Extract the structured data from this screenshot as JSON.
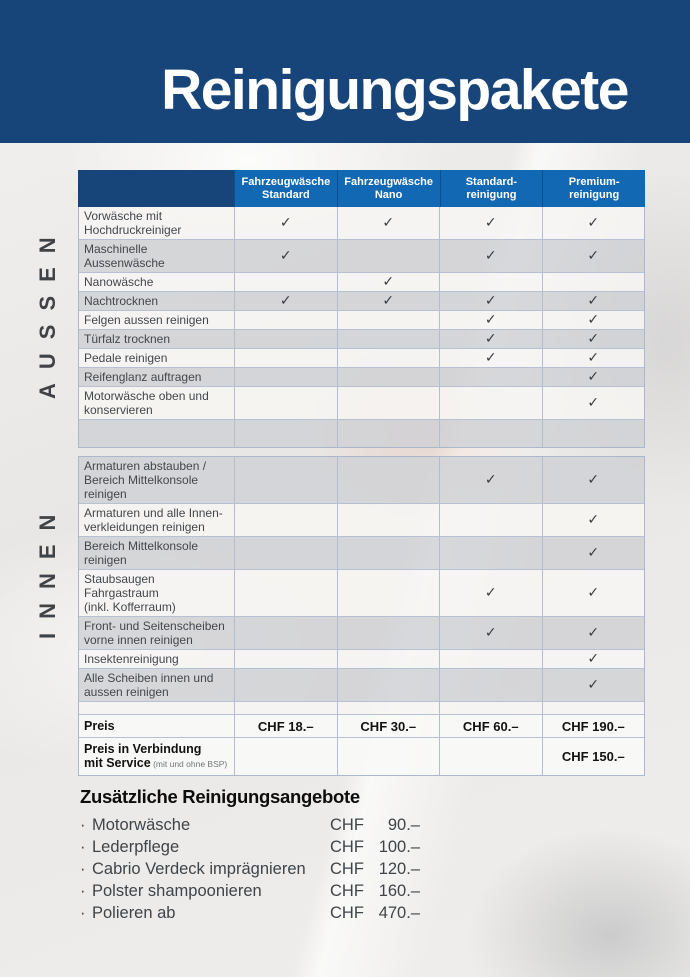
{
  "page": {
    "title": "Reinigungspakete"
  },
  "section_labels": {
    "outside": "AUSSEN",
    "inside": "INNEN"
  },
  "colors": {
    "banner_navy": "#17457a",
    "header_blue": "#1268b3",
    "check_gray": "#383c41",
    "text_gray": "#42474d"
  },
  "table": {
    "check_glyph": "✓",
    "columns": [
      {
        "lines": [
          "Fahrzeugwäsche",
          "Standard"
        ]
      },
      {
        "lines": [
          "Fahrzeugwäsche",
          "Nano"
        ]
      },
      {
        "lines": [
          "Standard-",
          "reinigung"
        ]
      },
      {
        "lines": [
          "Premium-",
          "reinigung"
        ]
      }
    ],
    "sections": [
      {
        "id": "aussen",
        "rows": [
          {
            "lines": [
              "Vorwäsche mit",
              "Hochdruckreiniger"
            ],
            "checks": [
              1,
              1,
              1,
              1
            ],
            "shade": "light"
          },
          {
            "lines": [
              "Maschinelle",
              "Aussenwäsche"
            ],
            "checks": [
              1,
              0,
              1,
              1
            ],
            "shade": "dark"
          },
          {
            "lines": [
              "Nanowäsche"
            ],
            "checks": [
              0,
              1,
              0,
              0
            ],
            "shade": "light"
          },
          {
            "lines": [
              "Nachtrocknen"
            ],
            "checks": [
              1,
              1,
              1,
              1
            ],
            "shade": "dark"
          },
          {
            "lines": [
              "Felgen aussen reinigen"
            ],
            "checks": [
              0,
              0,
              1,
              1
            ],
            "shade": "light"
          },
          {
            "lines": [
              "Türfalz trocknen"
            ],
            "checks": [
              0,
              0,
              1,
              1
            ],
            "shade": "dark"
          },
          {
            "lines": [
              "Pedale reinigen"
            ],
            "checks": [
              0,
              0,
              1,
              1
            ],
            "shade": "light"
          },
          {
            "lines": [
              "Reifenglanz auftragen"
            ],
            "checks": [
              0,
              0,
              0,
              1
            ],
            "shade": "dark"
          },
          {
            "lines": [
              "Motorwäsche oben und",
              "konservieren"
            ],
            "checks": [
              0,
              0,
              0,
              1
            ],
            "shade": "light"
          },
          {
            "lines": [],
            "checks": [
              0,
              0,
              0,
              0
            ],
            "shade": "dark",
            "empty": true
          }
        ]
      },
      {
        "id": "innen",
        "rows": [
          {
            "lines": [
              "Armaturen abstauben /",
              "Bereich Mittelkonsole",
              "reinigen"
            ],
            "checks": [
              0,
              0,
              1,
              1
            ],
            "shade": "dark"
          },
          {
            "lines": [
              "Armaturen und alle Innen-",
              "verkleidungen reinigen"
            ],
            "checks": [
              0,
              0,
              0,
              1
            ],
            "shade": "light"
          },
          {
            "lines": [
              "Bereich Mittelkonsole",
              "reinigen"
            ],
            "checks": [
              0,
              0,
              0,
              1
            ],
            "shade": "dark"
          },
          {
            "lines": [
              "Staubsaugen Fahrgastraum",
              "(inkl. Kofferraum)"
            ],
            "checks": [
              0,
              0,
              1,
              1
            ],
            "shade": "light"
          },
          {
            "lines": [
              "Front- und Seitenscheiben",
              "vorne innen reinigen"
            ],
            "checks": [
              0,
              0,
              1,
              1
            ],
            "shade": "dark"
          },
          {
            "lines": [
              "Insektenreinigung"
            ],
            "checks": [
              0,
              0,
              0,
              1
            ],
            "shade": "light"
          },
          {
            "lines": [
              "Alle Scheiben innen und",
              "aussen reinigen"
            ],
            "checks": [
              0,
              0,
              0,
              1
            ],
            "shade": "dark"
          },
          {
            "lines": [],
            "checks": [
              0,
              0,
              0,
              0
            ],
            "shade": "light",
            "empty": true
          },
          {
            "price": true,
            "lines": [
              "Preis"
            ],
            "note": "",
            "values": [
              "CHF 18.–",
              "CHF 30.–",
              "CHF 60.–",
              "CHF 190.–"
            ],
            "shade": "white"
          },
          {
            "price": true,
            "lines": [
              "Preis in Verbindung",
              "mit Service"
            ],
            "note": "(mit und ohne BSP)",
            "values": [
              "",
              "",
              "",
              "CHF 150.–"
            ],
            "shade": "white"
          }
        ]
      }
    ]
  },
  "extras": {
    "heading": "Zusätzliche Reinigungsangebote",
    "bullet": "·",
    "currency": "CHF",
    "items": [
      {
        "name": "Motorwäsche",
        "price": "90.–"
      },
      {
        "name": "Lederpflege",
        "price": "100.–"
      },
      {
        "name": "Cabrio Verdeck imprägnieren",
        "price": "120.–"
      },
      {
        "name": "Polster shampoonieren",
        "price": "160.–"
      },
      {
        "name": "Polieren ab",
        "price": "470.–"
      }
    ]
  }
}
